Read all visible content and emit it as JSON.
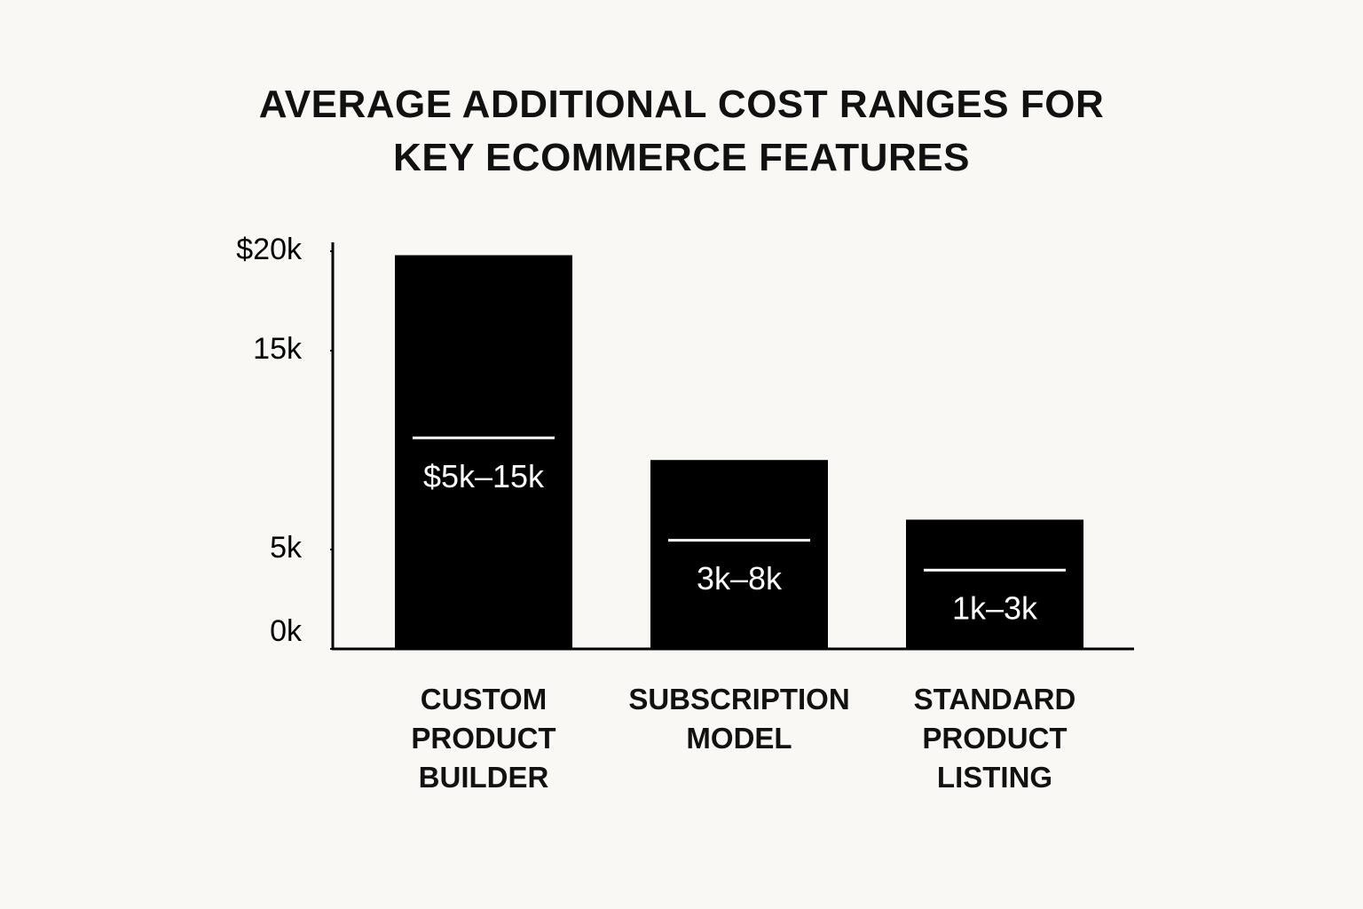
{
  "chart_data": {
    "type": "bar",
    "title": "AVERAGE ADDITIONAL COST RANGES FOR KEY ECOMMERCE FEATURES",
    "categories": [
      "CUSTOM PRODUCT BUILDER",
      "SUBSCRIPTION MODEL",
      "STANDARD PRODUCT LISTING"
    ],
    "values": [
      19.8,
      9.5,
      6.5
    ],
    "range_labels": [
      "$5k–15k",
      "3k–8k",
      "1k–3k"
    ],
    "color": "#000000",
    "ylim": [
      0,
      20
    ],
    "yticks": [
      {
        "value": 20,
        "label": "$20k"
      },
      {
        "value": 15,
        "label": "15k"
      },
      {
        "value": 5,
        "label": "5k"
      },
      {
        "value": 0,
        "label": "0k"
      }
    ],
    "grid": false
  }
}
